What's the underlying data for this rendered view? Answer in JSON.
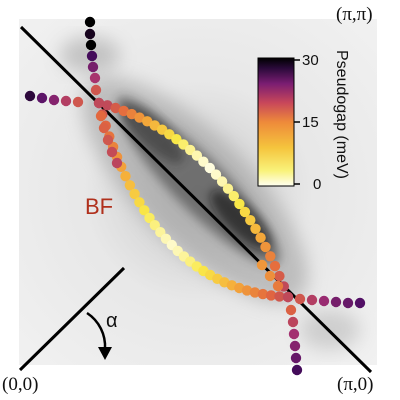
{
  "corners": {
    "top_right": "(π,π)",
    "bottom_left": "(0,0)",
    "bottom_right": "(π,0)"
  },
  "labels": {
    "bare_fermi_surface": "BF",
    "angle": "α"
  },
  "colorbar": {
    "title": "Pseudogap (meV)",
    "ticks": [
      "30",
      "15",
      "0"
    ],
    "range_mev": [
      0,
      30
    ],
    "gradient": [
      "#fffff2",
      "#f9e948",
      "#f4a93a",
      "#e3683e",
      "#a02e72",
      "#4b0d64",
      "#000000"
    ]
  },
  "colors": {
    "bf_label": "#b0301c",
    "panel_background": "#e9e9e9",
    "diagonal_line": "#000000"
  }
}
